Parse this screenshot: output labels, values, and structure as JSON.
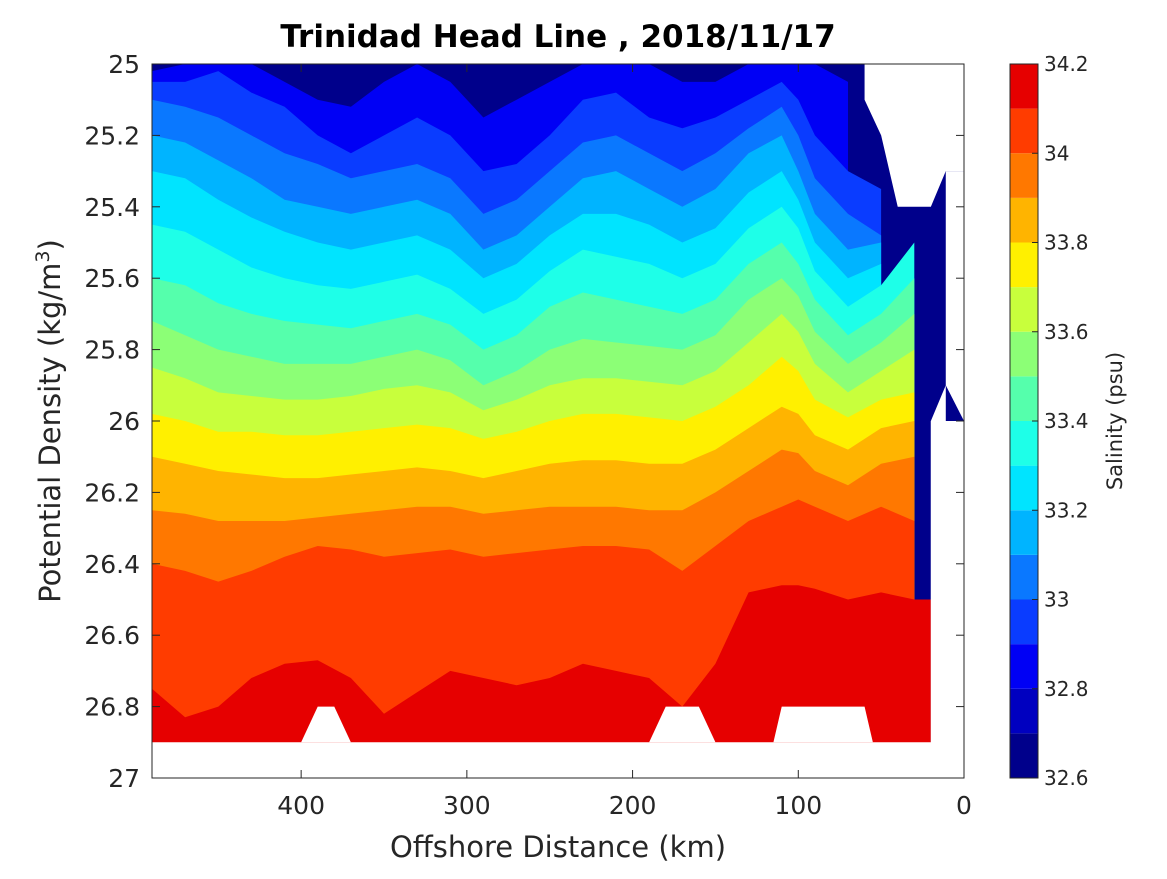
{
  "chart_data": {
    "type": "heatmap",
    "subtype": "filled-contour",
    "title": "Trinidad Head Line , 2018/11/17",
    "xlabel": "Offshore Distance (km)",
    "ylabel_base": "Potential Density (kg/m",
    "ylabel_sup": "3",
    "ylabel_close": ")",
    "xlim": [
      490,
      0
    ],
    "x_reversed": true,
    "ylim": [
      25,
      27
    ],
    "y_reversed": true,
    "xticks": [
      400,
      300,
      200,
      100,
      0
    ],
    "xtick_labels": [
      "400",
      "300",
      "200",
      "100",
      "0"
    ],
    "yticks": [
      25,
      25.2,
      25.4,
      25.6,
      25.8,
      26,
      26.2,
      26.4,
      26.6,
      26.8,
      27
    ],
    "ytick_labels": [
      "25",
      "25.2",
      "25.4",
      "25.6",
      "25.8",
      "26",
      "26.2",
      "26.4",
      "26.6",
      "26.8",
      "27"
    ],
    "colorbar": {
      "label": "Salinity (psu)",
      "range": [
        32.6,
        34.2
      ],
      "ticks": [
        32.6,
        32.8,
        33,
        33.2,
        33.4,
        33.6,
        33.8,
        34,
        34.2
      ],
      "tick_labels": [
        "32.6",
        "32.8",
        "33",
        "33.2",
        "33.4",
        "33.6",
        "33.8",
        "34",
        "34.2"
      ],
      "levels": [
        32.6,
        32.7,
        32.8,
        32.9,
        33.0,
        33.1,
        33.2,
        33.3,
        33.4,
        33.5,
        33.6,
        33.7,
        33.8,
        33.9,
        34.0,
        34.1,
        34.2
      ],
      "colors": [
        "#00008b",
        "#0000c0",
        "#0000f5",
        "#0a3cff",
        "#0a78ff",
        "#00b4ff",
        "#00e4ff",
        "#1effe8",
        "#55ffac",
        "#8cff76",
        "#c8ff3c",
        "#fff000",
        "#ffb400",
        "#ff7800",
        "#ff3c00",
        "#e60000",
        "#a00000"
      ]
    },
    "x": [
      490,
      470,
      450,
      430,
      410,
      390,
      370,
      350,
      330,
      310,
      290,
      270,
      250,
      230,
      210,
      190,
      170,
      150,
      130,
      110,
      100,
      90,
      70,
      50,
      30,
      20
    ],
    "contour_boundaries": [
      {
        "upper": 32.8,
        "y": [
          25.02,
          25.0,
          25.0,
          25.0,
          25.05,
          25.1,
          25.12,
          25.05,
          25.0,
          25.05,
          25.15,
          25.1,
          25.05,
          25.0,
          25.0,
          25.0,
          25.05,
          25.05,
          25.0,
          25.0,
          25.0,
          25.0,
          25.05
        ]
      },
      {
        "upper": 32.9,
        "y": [
          25.05,
          25.05,
          25.02,
          25.08,
          25.12,
          25.2,
          25.25,
          25.2,
          25.15,
          25.2,
          25.3,
          25.28,
          25.2,
          25.1,
          25.08,
          25.15,
          25.18,
          25.15,
          25.1,
          25.05,
          25.1,
          25.2,
          25.3,
          25.35
        ]
      },
      {
        "upper": 33.0,
        "y": [
          25.1,
          25.12,
          25.15,
          25.2,
          25.25,
          25.28,
          25.32,
          25.3,
          25.28,
          25.32,
          25.42,
          25.38,
          25.3,
          25.22,
          25.2,
          25.25,
          25.3,
          25.25,
          25.18,
          25.12,
          25.2,
          25.32,
          25.42,
          25.48
        ]
      },
      {
        "upper": 33.1,
        "y": [
          25.2,
          25.22,
          25.27,
          25.32,
          25.38,
          25.4,
          25.42,
          25.4,
          25.38,
          25.42,
          25.52,
          25.48,
          25.4,
          25.32,
          25.3,
          25.35,
          25.4,
          25.35,
          25.25,
          25.2,
          25.3,
          25.42,
          25.52,
          25.5
        ]
      },
      {
        "upper": 33.2,
        "y": [
          25.3,
          25.32,
          25.38,
          25.43,
          25.47,
          25.5,
          25.52,
          25.5,
          25.48,
          25.52,
          25.6,
          25.56,
          25.48,
          25.42,
          25.42,
          25.45,
          25.5,
          25.46,
          25.36,
          25.3,
          25.38,
          25.5,
          25.6,
          25.56
        ]
      },
      {
        "upper": 33.3,
        "y": [
          25.45,
          25.47,
          25.52,
          25.57,
          25.6,
          25.62,
          25.63,
          25.61,
          25.59,
          25.63,
          25.7,
          25.66,
          25.58,
          25.52,
          25.54,
          25.56,
          25.6,
          25.56,
          25.46,
          25.4,
          25.46,
          25.58,
          25.68,
          25.62,
          25.5
        ]
      },
      {
        "upper": 33.4,
        "y": [
          25.6,
          25.62,
          25.67,
          25.7,
          25.72,
          25.73,
          25.74,
          25.72,
          25.7,
          25.73,
          25.8,
          25.76,
          25.68,
          25.64,
          25.66,
          25.68,
          25.7,
          25.66,
          25.56,
          25.5,
          25.56,
          25.66,
          25.76,
          25.7,
          25.6
        ]
      },
      {
        "upper": 33.5,
        "y": [
          25.72,
          25.76,
          25.8,
          25.82,
          25.84,
          25.84,
          25.84,
          25.82,
          25.8,
          25.83,
          25.9,
          25.86,
          25.8,
          25.77,
          25.78,
          25.79,
          25.8,
          25.76,
          25.66,
          25.6,
          25.65,
          25.75,
          25.84,
          25.78,
          25.7
        ]
      },
      {
        "upper": 33.6,
        "y": [
          25.85,
          25.88,
          25.92,
          25.93,
          25.94,
          25.94,
          25.93,
          25.91,
          25.9,
          25.92,
          25.97,
          25.94,
          25.9,
          25.88,
          25.88,
          25.89,
          25.9,
          25.86,
          25.78,
          25.7,
          25.75,
          25.84,
          25.92,
          25.86,
          25.8
        ]
      },
      {
        "upper": 33.7,
        "y": [
          25.98,
          26.0,
          26.03,
          26.03,
          26.04,
          26.04,
          26.03,
          26.02,
          26.01,
          26.02,
          26.05,
          26.03,
          26.0,
          25.98,
          25.98,
          25.99,
          26.0,
          25.96,
          25.9,
          25.82,
          25.86,
          25.94,
          25.99,
          25.94,
          25.92
        ]
      },
      {
        "upper": 33.8,
        "y": [
          26.1,
          26.12,
          26.14,
          26.15,
          26.16,
          26.16,
          26.15,
          26.14,
          26.13,
          26.14,
          26.16,
          26.14,
          26.12,
          26.11,
          26.11,
          26.12,
          26.12,
          26.08,
          26.02,
          25.96,
          25.98,
          26.04,
          26.08,
          26.02,
          26.0
        ]
      },
      {
        "upper": 33.9,
        "y": [
          26.25,
          26.26,
          26.28,
          26.28,
          26.28,
          26.27,
          26.26,
          26.25,
          26.24,
          26.24,
          26.26,
          26.25,
          26.24,
          26.24,
          26.24,
          26.25,
          26.25,
          26.2,
          26.14,
          26.08,
          26.09,
          26.14,
          26.18,
          26.12,
          26.1
        ]
      },
      {
        "upper": 34.0,
        "y": [
          26.4,
          26.42,
          26.45,
          26.42,
          26.38,
          26.35,
          26.36,
          26.38,
          26.37,
          26.36,
          26.38,
          26.37,
          26.36,
          26.35,
          26.35,
          26.36,
          26.42,
          26.35,
          26.28,
          26.24,
          26.22,
          26.24,
          26.28,
          26.24,
          26.28
        ]
      },
      {
        "upper": 34.1,
        "y": [
          26.75,
          26.83,
          26.8,
          26.72,
          26.68,
          26.67,
          26.72,
          26.82,
          26.76,
          26.7,
          26.72,
          26.74,
          26.72,
          26.68,
          26.7,
          26.72,
          26.8,
          26.68,
          26.48,
          26.46,
          26.46,
          26.47,
          26.5,
          26.48,
          26.5,
          26.5
        ]
      }
    ],
    "max_salinity_patches": [
      {
        "x_range": [
          145,
          118
        ],
        "y_range": [
          26.8,
          26.9
        ],
        "salinity": 34.15
      },
      {
        "x_range": [
          48,
          32
        ],
        "y_range": [
          26.82,
          26.9
        ],
        "salinity": 34.15
      }
    ],
    "blank_regions": [
      "no data below sigma 26.9",
      "no data near 0-50 km shelf",
      "notches at ~385 km and ~170 km near 26.8-26.9"
    ]
  }
}
